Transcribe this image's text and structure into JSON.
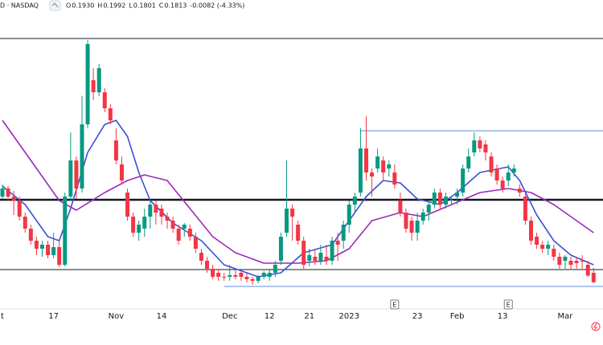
{
  "chart_data": {
    "type": "candlestick",
    "header": {
      "symbol": "D · NASDAQ",
      "ohlc": [
        {
          "label": "O",
          "value": "0.1930"
        },
        {
          "label": "H",
          "value": "0.1992"
        },
        {
          "label": "L",
          "value": "0.1801"
        },
        {
          "label": "C",
          "value": "0.1813"
        }
      ],
      "change": "-0.0082 (-4.33%)"
    },
    "categories": [
      "t",
      null,
      null,
      null,
      null,
      null,
      null,
      null,
      null,
      "17",
      null,
      null,
      null,
      null,
      null,
      null,
      null,
      null,
      null,
      null,
      "Nov",
      null,
      null,
      null,
      null,
      null,
      null,
      null,
      "14",
      null,
      null,
      null,
      null,
      null,
      null,
      null,
      null,
      null,
      null,
      null,
      "Dec",
      null,
      null,
      null,
      null,
      null,
      null,
      "12",
      null,
      null,
      null,
      null,
      null,
      null,
      "21",
      null,
      null,
      null,
      null,
      null,
      null,
      "2023",
      null,
      null,
      null,
      null,
      null,
      null,
      null,
      null,
      null,
      null,
      null,
      "23",
      null,
      null,
      null,
      null,
      null,
      null,
      "Feb",
      null,
      null,
      null,
      null,
      null,
      null,
      null,
      "13",
      null,
      null,
      null,
      null,
      null,
      null,
      null,
      null,
      null,
      null,
      "Mar",
      null,
      null,
      null,
      null,
      null
    ],
    "open": [
      0.288,
      0.298,
      0.288,
      0.283,
      0.263,
      0.248,
      0.233,
      0.223,
      0.228,
      0.215,
      0.225,
      0.203,
      0.288,
      0.333,
      0.298,
      0.378,
      0.433,
      0.418,
      0.418,
      0.398,
      0.358,
      0.328,
      0.293,
      0.263,
      0.243,
      0.248,
      0.263,
      0.278,
      0.273,
      0.263,
      0.258,
      0.248,
      0.248,
      0.248,
      0.238,
      0.218,
      0.208,
      0.198,
      0.193,
      0.188,
      0.188,
      0.19,
      0.193,
      0.188,
      0.185,
      0.183,
      0.188,
      0.188,
      0.193,
      0.208,
      0.243,
      0.273,
      0.253,
      0.233,
      0.208,
      0.213,
      0.208,
      0.213,
      0.208,
      0.233,
      0.233,
      0.253,
      0.278,
      0.293,
      0.348,
      0.318,
      0.323,
      0.333,
      0.323,
      0.318,
      0.283,
      0.268,
      0.258,
      0.243,
      0.258,
      0.268,
      0.278,
      0.293,
      0.278,
      0.283,
      0.288,
      0.293,
      0.323,
      0.343,
      0.358,
      0.353,
      0.338,
      0.323,
      0.308,
      0.308,
      0.318,
      0.298,
      0.288,
      0.258,
      0.238,
      0.228,
      0.223,
      0.223,
      0.213,
      0.208,
      0.208,
      0.208,
      0.208,
      0.203,
      0.193
    ],
    "high": [
      0.303,
      0.301,
      0.295,
      0.288,
      0.268,
      0.253,
      0.238,
      0.233,
      0.233,
      0.243,
      0.233,
      0.293,
      0.368,
      0.338,
      0.413,
      0.483,
      0.448,
      0.453,
      0.423,
      0.403,
      0.373,
      0.338,
      0.298,
      0.268,
      0.258,
      0.273,
      0.283,
      0.283,
      0.278,
      0.268,
      0.263,
      0.253,
      0.255,
      0.253,
      0.243,
      0.223,
      0.213,
      0.203,
      0.198,
      0.193,
      0.203,
      0.198,
      0.195,
      0.193,
      0.188,
      0.19,
      0.195,
      0.198,
      0.208,
      0.243,
      0.333,
      0.278,
      0.258,
      0.238,
      0.223,
      0.221,
      0.228,
      0.228,
      0.238,
      0.243,
      0.258,
      0.283,
      0.293,
      0.373,
      0.388,
      0.323,
      0.348,
      0.338,
      0.333,
      0.328,
      0.293,
      0.273,
      0.263,
      0.268,
      0.273,
      0.283,
      0.298,
      0.298,
      0.293,
      0.288,
      0.298,
      0.328,
      0.348,
      0.368,
      0.363,
      0.358,
      0.343,
      0.328,
      0.313,
      0.328,
      0.328,
      0.303,
      0.293,
      0.263,
      0.243,
      0.233,
      0.233,
      0.228,
      0.218,
      0.215,
      0.213,
      0.213,
      0.215,
      0.208,
      0.1992
    ],
    "low": [
      0.285,
      0.283,
      0.265,
      0.258,
      0.243,
      0.228,
      0.215,
      0.213,
      0.211,
      0.211,
      0.2,
      0.201,
      0.283,
      0.285,
      0.293,
      0.373,
      0.408,
      0.413,
      0.393,
      0.378,
      0.328,
      0.303,
      0.258,
      0.238,
      0.233,
      0.238,
      0.248,
      0.253,
      0.253,
      0.248,
      0.243,
      0.228,
      0.238,
      0.233,
      0.218,
      0.203,
      0.193,
      0.185,
      0.183,
      0.183,
      0.183,
      0.185,
      0.183,
      0.181,
      0.178,
      0.18,
      0.185,
      0.183,
      0.188,
      0.203,
      0.238,
      0.233,
      0.228,
      0.198,
      0.201,
      0.203,
      0.203,
      0.203,
      0.203,
      0.208,
      0.223,
      0.243,
      0.268,
      0.288,
      0.308,
      0.288,
      0.318,
      0.308,
      0.313,
      0.298,
      0.263,
      0.243,
      0.233,
      0.233,
      0.253,
      0.258,
      0.273,
      0.271,
      0.273,
      0.278,
      0.278,
      0.288,
      0.318,
      0.338,
      0.343,
      0.333,
      0.313,
      0.303,
      0.293,
      0.301,
      0.313,
      0.288,
      0.253,
      0.228,
      0.223,
      0.218,
      0.215,
      0.208,
      0.198,
      0.198,
      0.198,
      0.198,
      0.198,
      0.188,
      0.1801
    ],
    "close": [
      0.298,
      0.288,
      0.283,
      0.263,
      0.248,
      0.233,
      0.223,
      0.228,
      0.215,
      0.225,
      0.203,
      0.288,
      0.333,
      0.298,
      0.378,
      0.478,
      0.418,
      0.448,
      0.398,
      0.383,
      0.333,
      0.308,
      0.263,
      0.243,
      0.253,
      0.263,
      0.278,
      0.268,
      0.263,
      0.258,
      0.248,
      0.233,
      0.253,
      0.238,
      0.223,
      0.208,
      0.198,
      0.188,
      0.188,
      0.187,
      0.19,
      0.188,
      0.188,
      0.185,
      0.183,
      0.188,
      0.193,
      0.193,
      0.203,
      0.238,
      0.273,
      0.263,
      0.233,
      0.203,
      0.215,
      0.208,
      0.218,
      0.208,
      0.233,
      0.228,
      0.253,
      0.278,
      0.288,
      0.348,
      0.318,
      0.313,
      0.338,
      0.318,
      0.328,
      0.303,
      0.268,
      0.248,
      0.243,
      0.258,
      0.268,
      0.278,
      0.293,
      0.278,
      0.288,
      0.284,
      0.293,
      0.323,
      0.338,
      0.358,
      0.348,
      0.343,
      0.318,
      0.308,
      0.298,
      0.318,
      0.323,
      0.293,
      0.258,
      0.233,
      0.228,
      0.223,
      0.228,
      0.213,
      0.203,
      0.213,
      0.203,
      0.205,
      0.207,
      0.1895,
      0.1813
    ],
    "up_color": "#089981",
    "down_color": "#f23645",
    "lines": [
      {
        "color": "#3d4fd8",
        "x": [
          0,
          4,
          8,
          10,
          12,
          15,
          18,
          20,
          22,
          24,
          26,
          30,
          35,
          39,
          45,
          49,
          53,
          58,
          60,
          64,
          67,
          70,
          73,
          77,
          80,
          84,
          89,
          91,
          94,
          97,
          100,
          104
        ],
        "values": [
          0.301,
          0.278,
          0.238,
          0.233,
          0.273,
          0.343,
          0.378,
          0.383,
          0.363,
          0.318,
          0.283,
          0.255,
          0.233,
          0.203,
          0.188,
          0.193,
          0.218,
          0.228,
          0.248,
          0.288,
          0.308,
          0.305,
          0.285,
          0.278,
          0.293,
          0.318,
          0.325,
          0.308,
          0.265,
          0.233,
          0.215,
          0.203
        ]
      },
      {
        "color": "#9c2ab8",
        "x": [
          0,
          5,
          10,
          13,
          18,
          22,
          25,
          29,
          33,
          37,
          41,
          46,
          52,
          57,
          61,
          65,
          70,
          74,
          79,
          84,
          89,
          93,
          97,
          104
        ],
        "values": [
          0.383,
          0.333,
          0.283,
          0.271,
          0.293,
          0.308,
          0.315,
          0.308,
          0.273,
          0.238,
          0.218,
          0.205,
          0.205,
          0.208,
          0.223,
          0.258,
          0.268,
          0.263,
          0.278,
          0.293,
          0.298,
          0.293,
          0.278,
          0.243
        ]
      }
    ],
    "levels": [
      {
        "value": 0.485,
        "color": "#131722",
        "width": 1
      },
      {
        "value": 0.284,
        "color": "#131722",
        "width": 2.5
      },
      {
        "value": 0.197,
        "color": "#131722",
        "width": 1
      },
      {
        "value": 0.37,
        "color": "#5b8fd9",
        "width": 1,
        "from": 63
      },
      {
        "value": 0.176,
        "color": "#5b8fd9",
        "width": 1,
        "from": 39
      }
    ],
    "events": [
      {
        "label": "E",
        "index": 69
      },
      {
        "label": "E",
        "index": 89
      }
    ],
    "ylim": [
      0.148,
      0.533
    ]
  }
}
